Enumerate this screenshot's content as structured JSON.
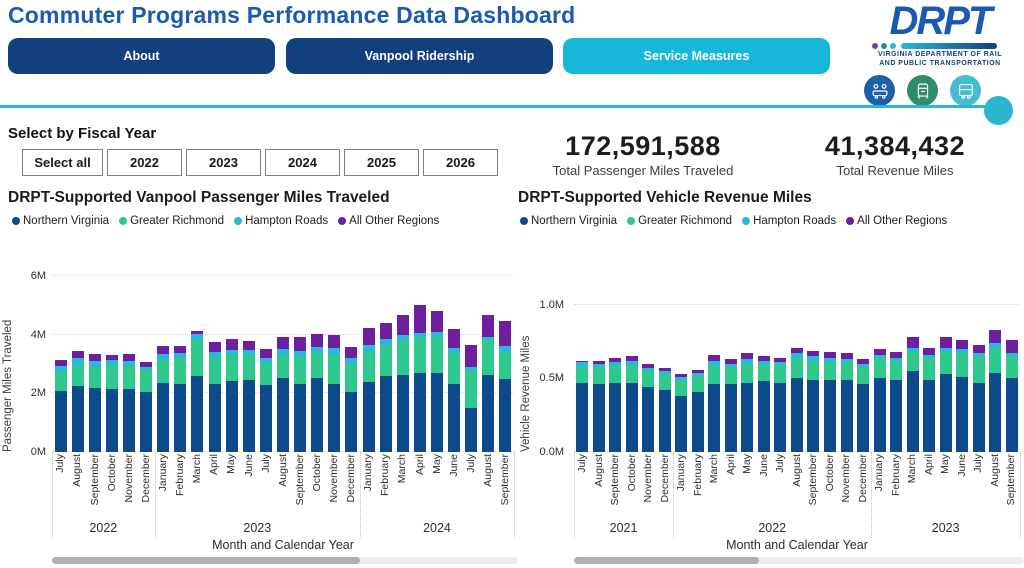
{
  "header": {
    "title": "Commuter Programs Performance Data Dashboard",
    "logo": {
      "name": "DRPT",
      "tagline_line1": "VIRGINIA DEPARTMENT OF RAIL",
      "tagline_line2": "AND PUBLIC TRANSPORTATION",
      "icons": [
        "carpool-icon",
        "train-icon",
        "bus-icon"
      ],
      "dot_colors": [
        "#7a3f9d",
        "#1f8fa8",
        "#29b7d9"
      ],
      "icon_circle_colors": [
        "#1d5ea8",
        "#2e8b6b",
        "#44bdd3"
      ]
    }
  },
  "tabs": [
    {
      "label": "About",
      "active": false
    },
    {
      "label": "Vanpool Ridership",
      "active": false
    },
    {
      "label": "Service Measures",
      "active": true
    }
  ],
  "fiscal_year_filter": {
    "heading": "Select by Fiscal Year",
    "buttons": [
      "Select all",
      "2022",
      "2023",
      "2024",
      "2025",
      "2026"
    ]
  },
  "kpis": [
    {
      "value": "172,591,588",
      "label": "Total Passenger Miles Traveled"
    },
    {
      "value": "41,384,432",
      "label": "Total Revenue Miles"
    }
  ],
  "theme": {
    "title_blue": "#1a5ab3",
    "tab_navy": "#123f7e",
    "tab_active_cyan": "#16b7d9",
    "divider_cyan": "#29b7d9"
  },
  "chart_data": [
    {
      "type": "bar",
      "stacked": true,
      "title": "DRPT-Supported Vanpool Passenger Miles Traveled",
      "ylabel": "Passenger Miles Traveled",
      "xlabel": "Month and Calendar Year",
      "unit": "millions",
      "legend": [
        "Northern Virginia",
        "Greater Richmond",
        "Hampton Roads",
        "All Other Regions"
      ],
      "colors": [
        "#0d4a8b",
        "#2fc98e",
        "#29b7dc",
        "#6d1fa0"
      ],
      "ymax": 6.28,
      "yticks": [
        {
          "v": 0,
          "label": "0M"
        },
        {
          "v": 2,
          "label": "2M"
        },
        {
          "v": 4,
          "label": "4M"
        },
        {
          "v": 6,
          "label": "6M"
        }
      ],
      "x": [
        "July",
        "August",
        "September",
        "October",
        "November",
        "December",
        "January",
        "February",
        "March",
        "April",
        "May",
        "June",
        "July",
        "August",
        "September",
        "October",
        "November",
        "December",
        "January",
        "February",
        "March",
        "April",
        "May",
        "June",
        "July",
        "August",
        "September"
      ],
      "year_groups": [
        {
          "label": "2022",
          "count": 6
        },
        {
          "label": "2023",
          "count": 12
        },
        {
          "label": "2024",
          "count": 9
        }
      ],
      "series": [
        {
          "name": "Northern Virginia",
          "values": [
            2.1,
            2.25,
            2.18,
            2.15,
            2.14,
            2.05,
            2.34,
            2.32,
            2.59,
            2.32,
            2.43,
            2.46,
            2.28,
            2.54,
            2.31,
            2.54,
            2.31,
            2.05,
            2.39,
            2.6,
            2.62,
            2.71,
            2.69,
            2.31,
            1.51,
            2.62,
            2.48
          ]
        },
        {
          "name": "Greater Richmond",
          "values": [
            0.64,
            0.72,
            0.72,
            0.81,
            0.79,
            0.74,
            0.85,
            0.89,
            1.24,
            0.93,
            0.93,
            0.87,
            0.76,
            0.77,
            0.95,
            0.84,
            1.0,
            0.95,
            1.07,
            1.06,
            1.18,
            1.21,
            1.23,
            1.07,
            1.26,
            1.22,
            0.95
          ]
        },
        {
          "name": "Hampton Roads",
          "values": [
            0.21,
            0.23,
            0.22,
            0.17,
            0.17,
            0.12,
            0.17,
            0.18,
            0.19,
            0.17,
            0.14,
            0.15,
            0.18,
            0.21,
            0.2,
            0.19,
            0.23,
            0.2,
            0.2,
            0.2,
            0.2,
            0.15,
            0.17,
            0.16,
            0.12,
            0.08,
            0.18
          ]
        },
        {
          "name": "All Other Regions",
          "values": [
            0.2,
            0.24,
            0.23,
            0.17,
            0.24,
            0.15,
            0.27,
            0.24,
            0.12,
            0.32,
            0.36,
            0.31,
            0.3,
            0.4,
            0.48,
            0.46,
            0.44,
            0.37,
            0.57,
            0.55,
            0.67,
            0.94,
            0.71,
            0.64,
            0.77,
            0.75,
            0.85
          ]
        }
      ],
      "scrollbar_thumb_pct": 66
    },
    {
      "type": "bar",
      "stacked": true,
      "title": "DRPT-Supported Vehicle Revenue Miles",
      "ylabel": "Vehicle Revenue Miles",
      "xlabel": "Month and Calendar Year",
      "unit": "millions",
      "legend": [
        "Northern Virginia",
        "Greater Richmond",
        "Hampton Roads",
        "All Other Regions"
      ],
      "colors": [
        "#0d4a8b",
        "#2fc98e",
        "#29b7dc",
        "#6d1fa0"
      ],
      "ymax": 1.25,
      "yticks": [
        {
          "v": 0,
          "label": "0.0M"
        },
        {
          "v": 0.5,
          "label": "0.5M"
        },
        {
          "v": 1,
          "label": "1.0M"
        }
      ],
      "x": [
        "July",
        "August",
        "September",
        "October",
        "November",
        "December",
        "January",
        "February",
        "March",
        "April",
        "May",
        "June",
        "July",
        "August",
        "September",
        "October",
        "November",
        "December",
        "January",
        "February",
        "March",
        "April",
        "May",
        "June",
        "July",
        "August",
        "September"
      ],
      "year_groups": [
        {
          "label": "2021",
          "count": 6
        },
        {
          "label": "2022",
          "count": 12
        },
        {
          "label": "2023",
          "count": 9
        }
      ],
      "series": [
        {
          "name": "Northern Virginia",
          "values": [
            0.47,
            0.46,
            0.47,
            0.47,
            0.44,
            0.42,
            0.38,
            0.41,
            0.46,
            0.46,
            0.47,
            0.48,
            0.47,
            0.5,
            0.49,
            0.49,
            0.49,
            0.46,
            0.5,
            0.49,
            0.55,
            0.49,
            0.53,
            0.51,
            0.47,
            0.54,
            0.5
          ]
        },
        {
          "name": "Greater Richmond",
          "values": [
            0.11,
            0.12,
            0.12,
            0.12,
            0.11,
            0.11,
            0.11,
            0.11,
            0.13,
            0.12,
            0.13,
            0.12,
            0.12,
            0.14,
            0.13,
            0.12,
            0.12,
            0.12,
            0.14,
            0.13,
            0.13,
            0.15,
            0.15,
            0.16,
            0.18,
            0.17,
            0.15
          ]
        },
        {
          "name": "Hampton Roads",
          "values": [
            0.03,
            0.02,
            0.02,
            0.03,
            0.02,
            0.02,
            0.02,
            0.02,
            0.03,
            0.02,
            0.03,
            0.02,
            0.02,
            0.03,
            0.03,
            0.03,
            0.02,
            0.02,
            0.02,
            0.02,
            0.03,
            0.02,
            0.03,
            0.03,
            0.02,
            0.03,
            0.02
          ]
        },
        {
          "name": "All Other Regions",
          "values": [
            0.01,
            0.02,
            0.03,
            0.03,
            0.03,
            0.02,
            0.02,
            0.02,
            0.04,
            0.03,
            0.04,
            0.03,
            0.03,
            0.04,
            0.04,
            0.04,
            0.04,
            0.03,
            0.04,
            0.04,
            0.07,
            0.05,
            0.07,
            0.06,
            0.06,
            0.09,
            0.09
          ]
        }
      ],
      "scrollbar_thumb_pct": 41
    }
  ]
}
